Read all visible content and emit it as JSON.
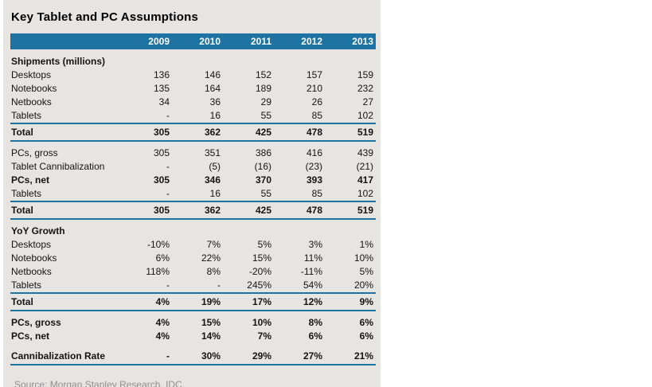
{
  "colors": {
    "header_blue": "#1e73a2",
    "rule_blue": "#1e73a2",
    "panel_bg": "#e6e5e2",
    "source_text": "#8f8f8f",
    "text_dark": "#141414"
  },
  "chart_data": {
    "type": "table",
    "title": "Key Tablet and PC Assumptions",
    "source": "Source: Morgan Stanley Research, IDC",
    "columns": [
      "2009",
      "2010",
      "2011",
      "2012",
      "2013"
    ],
    "sections": [
      {
        "rows": [
          {
            "label": "Shipments (millions)",
            "bold": true,
            "values": [
              "",
              "",
              "",
              "",
              ""
            ]
          },
          {
            "label": "Desktops",
            "values": [
              "136",
              "146",
              "152",
              "157",
              "159"
            ]
          },
          {
            "label": "Notebooks",
            "values": [
              "135",
              "164",
              "189",
              "210",
              "232"
            ]
          },
          {
            "label": "Netbooks",
            "values": [
              "34",
              "36",
              "29",
              "26",
              "27"
            ]
          },
          {
            "label": "Tablets",
            "values": [
              "-",
              "16",
              "55",
              "85",
              "102"
            ]
          },
          {
            "label": "Total",
            "bold": true,
            "total": true,
            "rule_top": true,
            "rule_bottom": true,
            "values": [
              "305",
              "362",
              "425",
              "478",
              "519"
            ]
          }
        ]
      },
      {
        "rows": [
          {
            "label": "PCs, gross",
            "values": [
              "305",
              "351",
              "386",
              "416",
              "439"
            ]
          },
          {
            "label": "Tablet Cannibalization",
            "values": [
              "-",
              "(5)",
              "(16)",
              "(23)",
              "(21)"
            ]
          },
          {
            "label": "PCs, net",
            "bold": true,
            "values": [
              "305",
              "346",
              "370",
              "393",
              "417"
            ]
          },
          {
            "label": "Tablets",
            "values": [
              "-",
              "16",
              "55",
              "85",
              "102"
            ]
          },
          {
            "label": "Total",
            "bold": true,
            "total": true,
            "rule_top": true,
            "rule_bottom": true,
            "values": [
              "305",
              "362",
              "425",
              "478",
              "519"
            ]
          }
        ]
      },
      {
        "rows": [
          {
            "label": "YoY Growth",
            "bold": true,
            "values": [
              "",
              "",
              "",
              "",
              ""
            ]
          },
          {
            "label": "Desktops",
            "values": [
              "-10%",
              "7%",
              "5%",
              "3%",
              "1%"
            ]
          },
          {
            "label": "Notebooks",
            "values": [
              "6%",
              "22%",
              "15%",
              "11%",
              "10%"
            ]
          },
          {
            "label": "Netbooks",
            "values": [
              "118%",
              "8%",
              "-20%",
              "-11%",
              "5%"
            ]
          },
          {
            "label": "Tablets",
            "values": [
              "-",
              "-",
              "245%",
              "54%",
              "20%"
            ]
          },
          {
            "label": "Total",
            "bold": true,
            "total": true,
            "rule_top": true,
            "rule_bottom": true,
            "values": [
              "4%",
              "19%",
              "17%",
              "12%",
              "9%"
            ]
          }
        ]
      },
      {
        "rows": [
          {
            "label": "PCs, gross",
            "bold": true,
            "values": [
              "4%",
              "15%",
              "10%",
              "8%",
              "6%"
            ]
          },
          {
            "label": "PCs, net",
            "bold": true,
            "values": [
              "4%",
              "14%",
              "7%",
              "6%",
              "6%"
            ]
          },
          {
            "label": "Cannibalization Rate",
            "bold": true,
            "total": true,
            "gap_before": true,
            "rule_bottom": true,
            "values": [
              "-",
              "30%",
              "29%",
              "27%",
              "21%"
            ]
          }
        ]
      }
    ]
  }
}
